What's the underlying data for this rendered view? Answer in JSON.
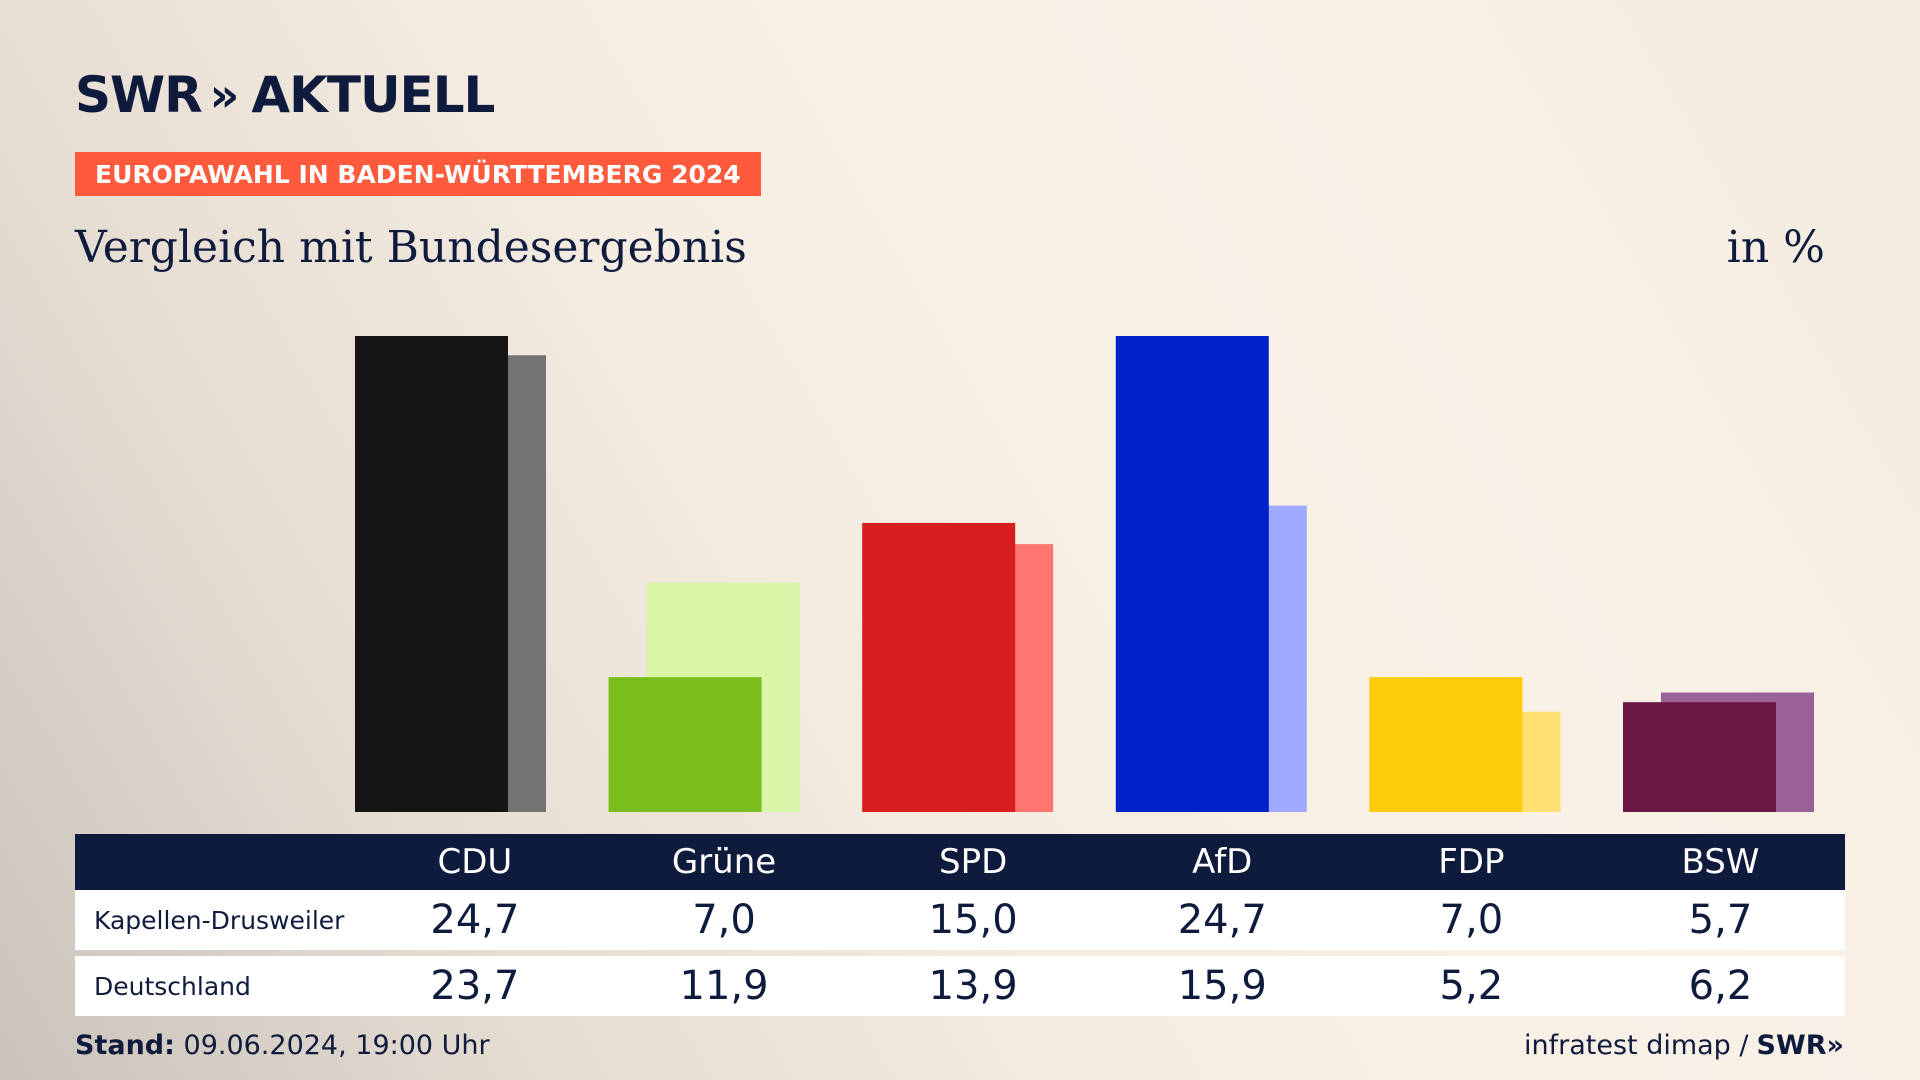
{
  "header": {
    "logo_text": "SWR",
    "logo_chevrons": "»",
    "logo_suffix": "AKTUELL",
    "badge": "EUROPAWAHL IN BADEN-WÜRTTEMBERG 2024",
    "subtitle": "Vergleich mit Bundesergebnis",
    "unit": "in %"
  },
  "chart_data": {
    "type": "bar",
    "title": "Vergleich mit Bundesergebnis",
    "unit": "in %",
    "categories": [
      "CDU",
      "Grüne",
      "SPD",
      "AfD",
      "FDP",
      "BSW"
    ],
    "series": [
      {
        "name": "Kapellen-Drusweiler",
        "values": [
          24.7,
          7.0,
          15.0,
          24.7,
          7.0,
          5.7
        ],
        "colors": [
          "#141414",
          "#7abe1e",
          "#d61e1e",
          "#0022c8",
          "#ffcc0a",
          "#6a1942"
        ]
      },
      {
        "name": "Deutschland",
        "values": [
          23.7,
          11.9,
          13.9,
          15.9,
          5.2,
          6.2
        ],
        "colors": [
          "#737373",
          "#d8f5a8",
          "#ff7670",
          "#9ea9ff",
          "#ffe070",
          "#9b6199"
        ]
      }
    ],
    "ylim": [
      0,
      24.7
    ],
    "grid": false,
    "legend": "table below chart"
  },
  "table": {
    "headers": [
      "CDU",
      "Grüne",
      "SPD",
      "AfD",
      "FDP",
      "BSW"
    ],
    "rows": [
      {
        "label": "Kapellen-Drusweiler",
        "values": [
          "24,7",
          "7,0",
          "15,0",
          "24,7",
          "7,0",
          "5,7"
        ]
      },
      {
        "label": "Deutschland",
        "values": [
          "23,7",
          "11,9",
          "13,9",
          "15,9",
          "5,2",
          "6,2"
        ]
      }
    ]
  },
  "footer": {
    "stand_label": "Stand:",
    "stand_value": "09.06.2024, 19:00 Uhr",
    "source": "infratest dimap /",
    "brand": "SWR",
    "brand_chevrons": "»"
  }
}
